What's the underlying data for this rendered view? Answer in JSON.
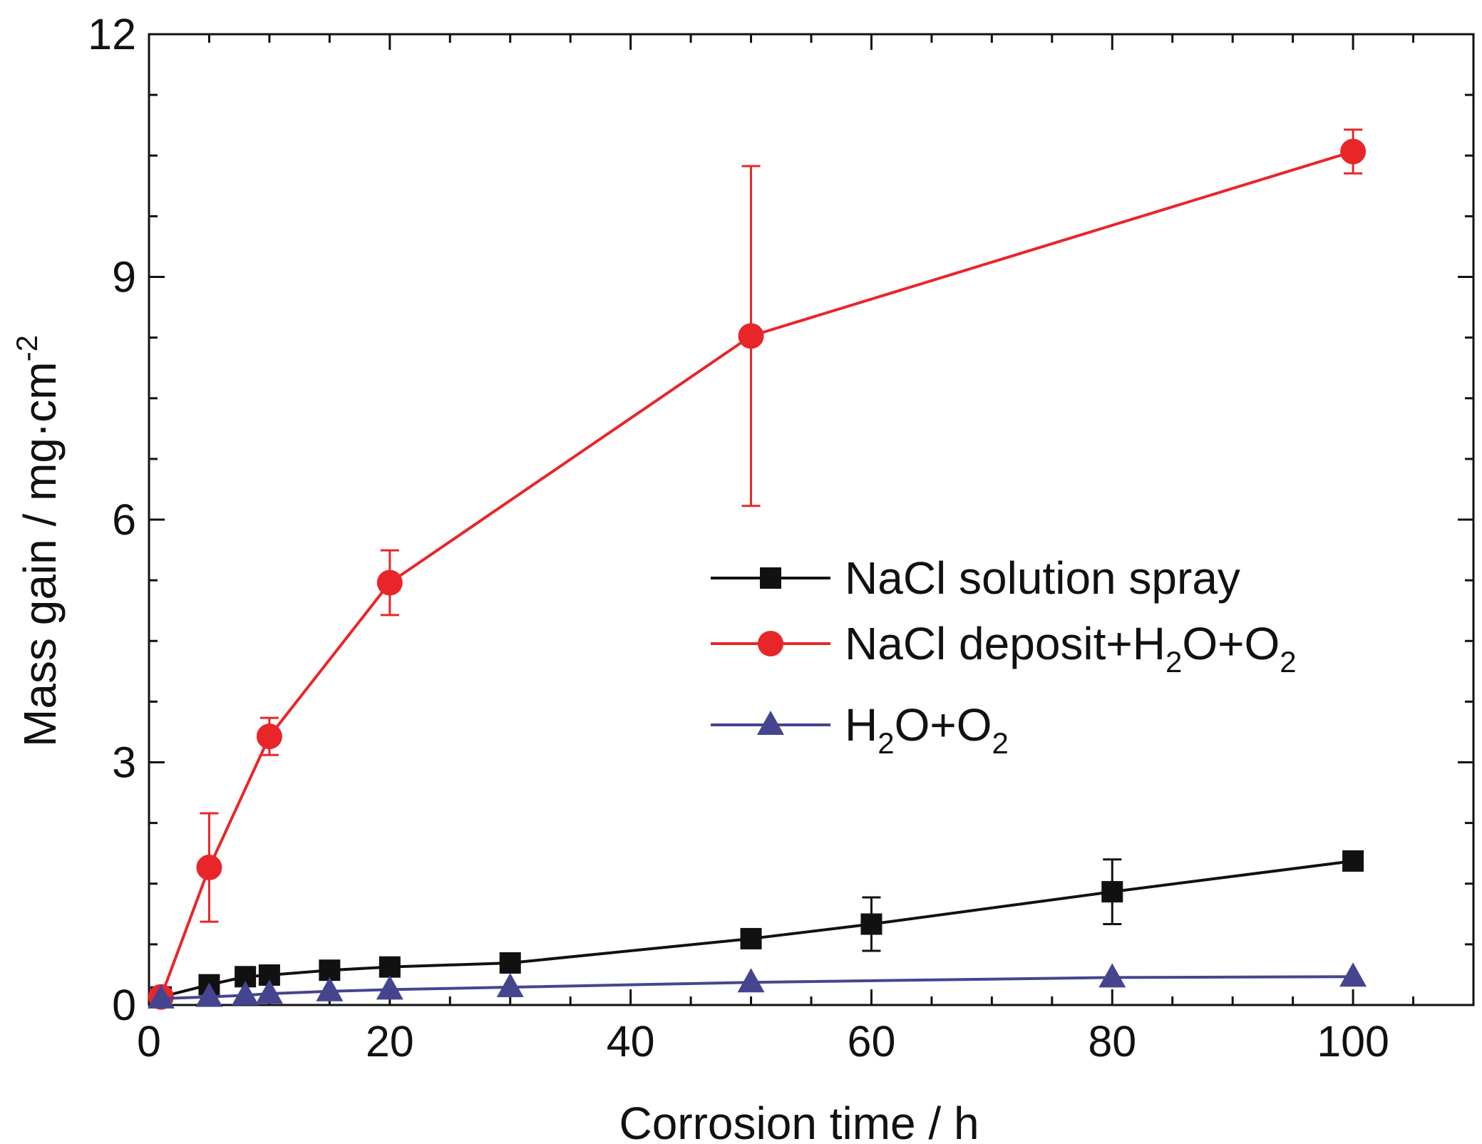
{
  "chart_data": {
    "type": "line",
    "xlabel": "Corrosion time / h",
    "ylabel": "Mass gain / mg·cm",
    "ylabel_sup": "-2",
    "xlim": [
      0,
      110
    ],
    "ylim": [
      0,
      12
    ],
    "xticks": [
      0,
      20,
      40,
      60,
      80,
      100
    ],
    "yticks": [
      0,
      3,
      6,
      9,
      12
    ],
    "x_minor_step": 5,
    "y_minor_step": 0.75,
    "grid": false,
    "legend_position": "center-right",
    "series": [
      {
        "name": "NaCl solution spray",
        "legend_parts": [
          {
            "t": "NaCl solution spray",
            "sub": false
          }
        ],
        "color": "#111111",
        "marker": "square",
        "points": [
          {
            "x": 1,
            "y": 0.1
          },
          {
            "x": 5,
            "y": 0.25
          },
          {
            "x": 8,
            "y": 0.35
          },
          {
            "x": 10,
            "y": 0.37
          },
          {
            "x": 15,
            "y": 0.43
          },
          {
            "x": 20,
            "y": 0.47
          },
          {
            "x": 30,
            "y": 0.52
          },
          {
            "x": 50,
            "y": 0.82
          },
          {
            "x": 60,
            "y": 1.0,
            "err": 0.33
          },
          {
            "x": 80,
            "y": 1.4,
            "err": 0.4
          },
          {
            "x": 100,
            "y": 1.78
          }
        ]
      },
      {
        "name": "NaCl deposit+H2O+O2",
        "legend_parts": [
          {
            "t": "NaCl deposit+H",
            "sub": false
          },
          {
            "t": "2",
            "sub": true
          },
          {
            "t": "O+O",
            "sub": false
          },
          {
            "t": "2",
            "sub": true
          }
        ],
        "color": "#e8262a",
        "marker": "circle",
        "points": [
          {
            "x": 1,
            "y": 0.1
          },
          {
            "x": 5,
            "y": 1.7,
            "err": 0.67
          },
          {
            "x": 10,
            "y": 3.32,
            "err": 0.23
          },
          {
            "x": 20,
            "y": 5.22,
            "err": 0.4
          },
          {
            "x": 50,
            "y": 8.27,
            "err": 2.1
          },
          {
            "x": 100,
            "y": 10.55,
            "err": 0.27
          }
        ]
      },
      {
        "name": "H2O+O2",
        "legend_parts": [
          {
            "t": "H",
            "sub": false
          },
          {
            "t": "2",
            "sub": true
          },
          {
            "t": "O+O",
            "sub": false
          },
          {
            "t": "2",
            "sub": true
          }
        ],
        "color": "#45458f",
        "marker": "triangle",
        "points": [
          {
            "x": 1,
            "y": 0.08
          },
          {
            "x": 5,
            "y": 0.1
          },
          {
            "x": 8,
            "y": 0.12
          },
          {
            "x": 10,
            "y": 0.14
          },
          {
            "x": 15,
            "y": 0.17
          },
          {
            "x": 20,
            "y": 0.19
          },
          {
            "x": 30,
            "y": 0.22
          },
          {
            "x": 50,
            "y": 0.28
          },
          {
            "x": 80,
            "y": 0.34
          },
          {
            "x": 100,
            "y": 0.35
          }
        ]
      }
    ]
  }
}
